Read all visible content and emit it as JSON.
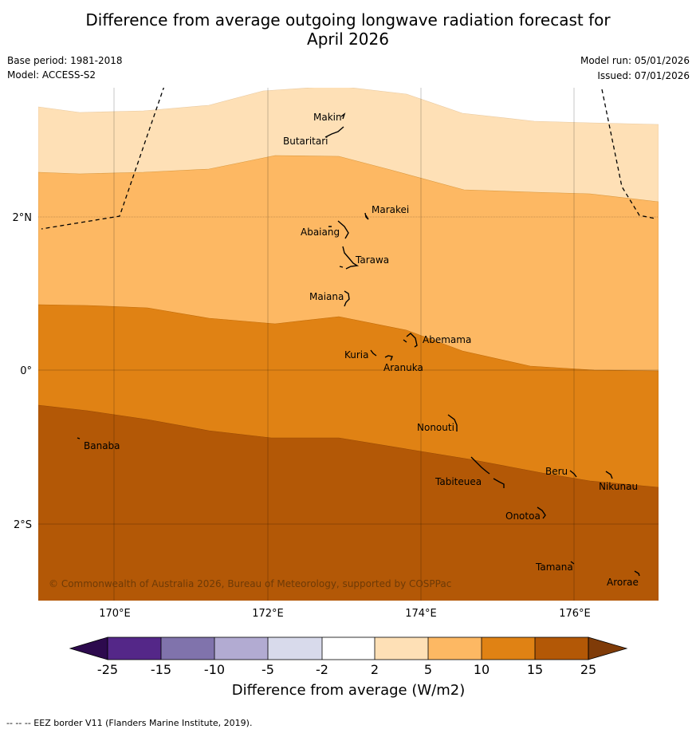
{
  "title_line1": "Difference from average outgoing longwave radiation forecast for",
  "title_line2": "April 2026",
  "base_period": "Base period: 1981-2018",
  "model": "Model: ACCESS-S2",
  "model_run": "Model run: 05/01/2026",
  "issued": "Issued: 07/01/2026",
  "copyright": "© Commonwealth of Australia 2026, Bureau of Meteorology, supported by COSPPac",
  "lat_labels": [
    "2°N",
    "0°",
    "2°S"
  ],
  "lon_labels": [
    "170°E",
    "172°E",
    "174°E",
    "176°E"
  ],
  "islands": [
    {
      "name": "Makin"
    },
    {
      "name": "Butaritari"
    },
    {
      "name": "Marakei"
    },
    {
      "name": "Abaiang"
    },
    {
      "name": "Tarawa"
    },
    {
      "name": "Maiana"
    },
    {
      "name": "Abemama"
    },
    {
      "name": "Kuria"
    },
    {
      "name": "Aranuka"
    },
    {
      "name": "Banaba"
    },
    {
      "name": "Nonouti"
    },
    {
      "name": "Beru"
    },
    {
      "name": "Tabiteuea"
    },
    {
      "name": "Nikunau"
    },
    {
      "name": "Onotoa"
    },
    {
      "name": "Tamana"
    },
    {
      "name": "Arorae"
    }
  ],
  "colorbar": {
    "ticks": [
      "-25",
      "-15",
      "-10",
      "-5",
      "-2",
      "2",
      "5",
      "10",
      "15",
      "25"
    ],
    "colors": [
      "#2d0a4e",
      "#542788",
      "#8073ac",
      "#b2abd2",
      "#d8daeb",
      "#ffffff",
      "#fee0b6",
      "#fdb863",
      "#e08214",
      "#b35806",
      "#7f3b08"
    ],
    "label": "Difference from average (W/m2)"
  },
  "footnote": "--  --  -- EEZ border V11 (Flanders Marine Institute, 2019)."
}
